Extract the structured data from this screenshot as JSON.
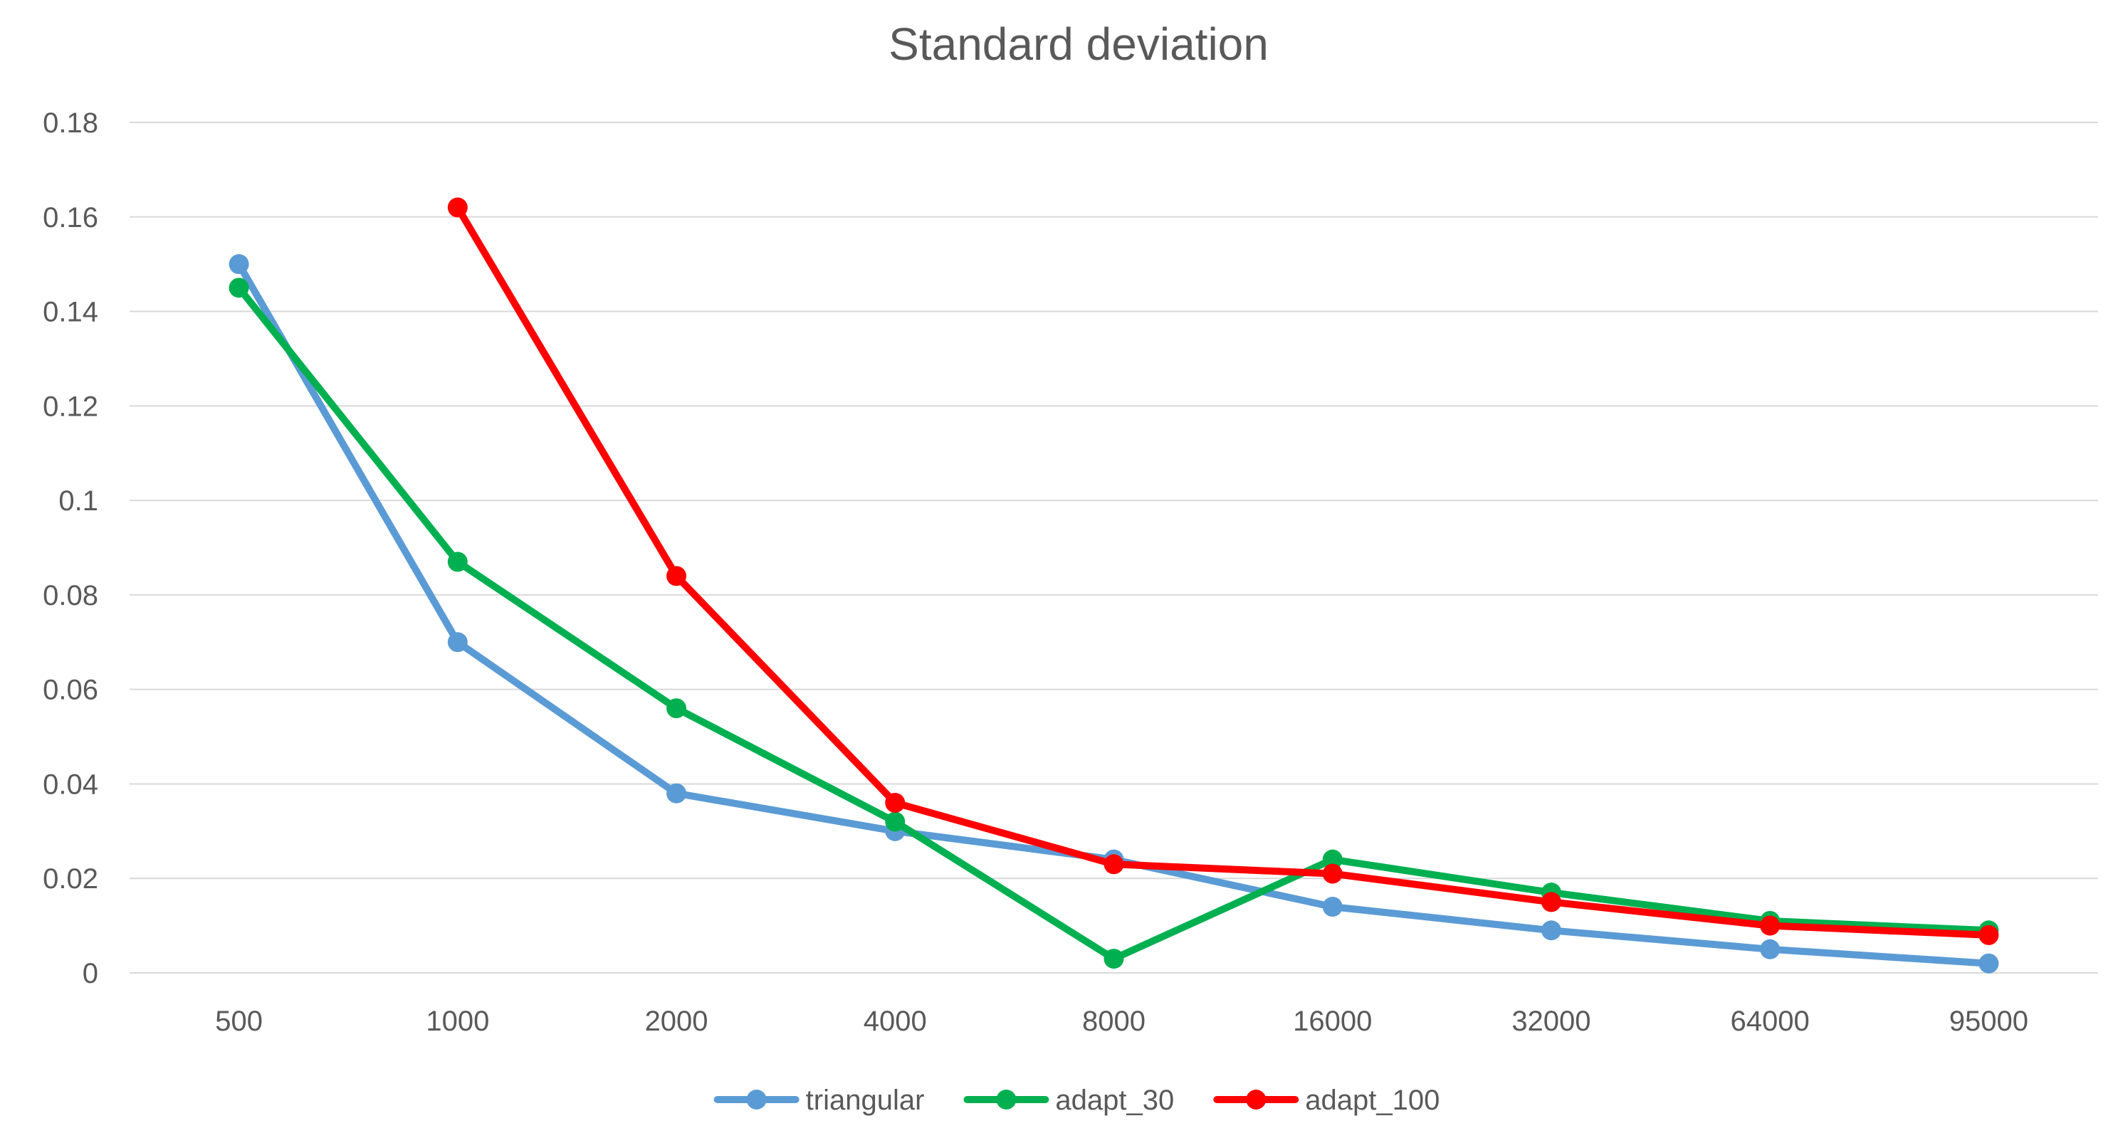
{
  "chart_data": {
    "type": "line",
    "title": "Standard deviation",
    "xlabel": "",
    "ylabel": "",
    "categories": [
      "500",
      "1000",
      "2000",
      "4000",
      "8000",
      "16000",
      "32000",
      "64000",
      "95000"
    ],
    "ylim": [
      0,
      0.18
    ],
    "yticks": [
      0,
      0.02,
      0.04,
      0.06,
      0.08,
      0.1,
      0.12,
      0.14,
      0.16,
      0.18
    ],
    "ytick_labels": [
      "0",
      "0.02",
      "0.04",
      "0.06",
      "0.08",
      "0.1",
      "0.12",
      "0.14",
      "0.16",
      "0.18"
    ],
    "grid": true,
    "legend_position": "bottom-center",
    "series": [
      {
        "name": "triangular",
        "color": "#5b9bd5",
        "values": [
          0.15,
          0.07,
          0.038,
          0.03,
          0.024,
          0.014,
          0.009,
          0.005,
          0.002
        ]
      },
      {
        "name": "adapt_30",
        "color": "#00b050",
        "values": [
          0.145,
          0.087,
          0.056,
          0.032,
          0.003,
          0.024,
          0.017,
          0.011,
          0.009
        ]
      },
      {
        "name": "adapt_100",
        "color": "#ff0000",
        "values": [
          null,
          0.162,
          0.084,
          0.036,
          0.023,
          0.021,
          0.015,
          0.01,
          0.008
        ]
      }
    ]
  }
}
